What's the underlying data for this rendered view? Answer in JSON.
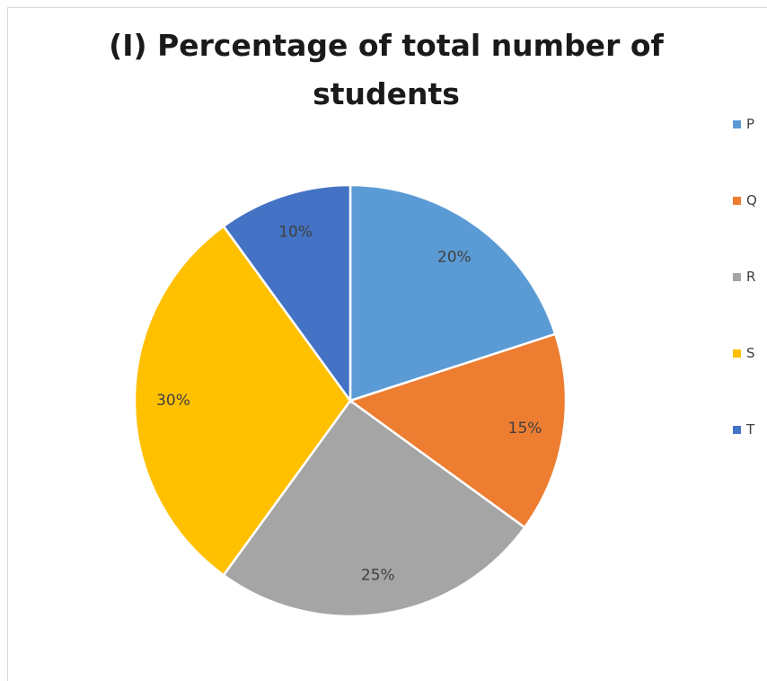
{
  "chart_data": {
    "type": "pie",
    "title_lines": [
      "(I) Percentage of total number of",
      "students"
    ],
    "categories": [
      "P",
      "Q",
      "R",
      "S",
      "T"
    ],
    "values": [
      20,
      15,
      25,
      30,
      10
    ],
    "value_labels": [
      "20%",
      "15%",
      "25%",
      "30%",
      "10%"
    ],
    "colors": [
      "#5b9bd5",
      "#ed7d31",
      "#a5a5a5",
      "#ffc000",
      "#4472c4"
    ],
    "legend_position": "right",
    "start_angle": "12 o'clock",
    "direction": "clockwise"
  }
}
